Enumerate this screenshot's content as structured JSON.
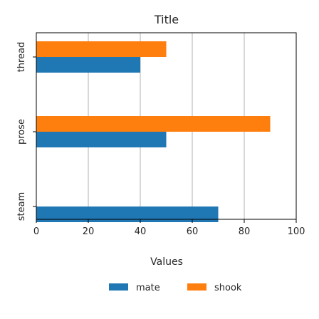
{
  "chart_data": {
    "type": "bar",
    "orientation": "horizontal",
    "title": "Title",
    "xlabel": "Values",
    "ylabel": "",
    "xlim": [
      0,
      100
    ],
    "x_ticks": [
      0,
      20,
      40,
      60,
      80,
      100
    ],
    "grid": true,
    "legend_placement": "bottom-center",
    "categories": [
      "steam",
      "prose",
      "thread"
    ],
    "series": [
      {
        "name": "mate",
        "color": "#1f77b4",
        "values": [
          70,
          50,
          40
        ]
      },
      {
        "name": "shook",
        "color": "#ff7f0e",
        "values": [
          0,
          90,
          50
        ]
      }
    ]
  }
}
